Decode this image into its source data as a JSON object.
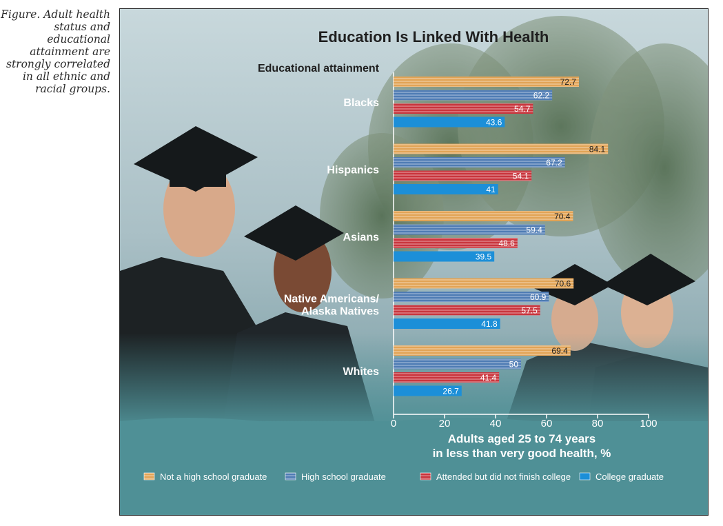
{
  "caption": "Figure. Adult health status and educational attainment are strongly correlated in all ethnic and racial groups.",
  "chart_data": {
    "type": "bar",
    "orientation": "horizontal",
    "title": "Education Is Linked With Health",
    "legend_title": "Educational attainment",
    "xlabel_line1": "Adults aged 25 to 74 years",
    "xlabel_line2": "in less than very good health, %",
    "xlim": [
      0,
      100
    ],
    "xticks": [
      0,
      20,
      40,
      60,
      80,
      100
    ],
    "legend_placement": "bottom",
    "categories": [
      {
        "line1": "Blacks",
        "line2": ""
      },
      {
        "line1": "Hispanics",
        "line2": ""
      },
      {
        "line1": "Asians",
        "line2": ""
      },
      {
        "line1": "Native Americans/",
        "line2": "Alaska Natives"
      },
      {
        "line1": "Whites",
        "line2": ""
      }
    ],
    "series": [
      {
        "name": "Not a high school graduate",
        "color": "#e2a456",
        "values": [
          72.7,
          84.1,
          70.4,
          70.6,
          69.4
        ]
      },
      {
        "name": "High school graduate",
        "color": "#4f7cb4",
        "values": [
          62.2,
          67.2,
          59.4,
          60.9,
          50
        ]
      },
      {
        "name": "Attended but did not finish college",
        "color": "#c9353d",
        "values": [
          54.7,
          54.1,
          48.6,
          57.5,
          41.4
        ]
      },
      {
        "name": "College graduate",
        "color": "#1c8fd8",
        "values": [
          43.6,
          41,
          39.5,
          41.8,
          26.7
        ]
      }
    ]
  }
}
